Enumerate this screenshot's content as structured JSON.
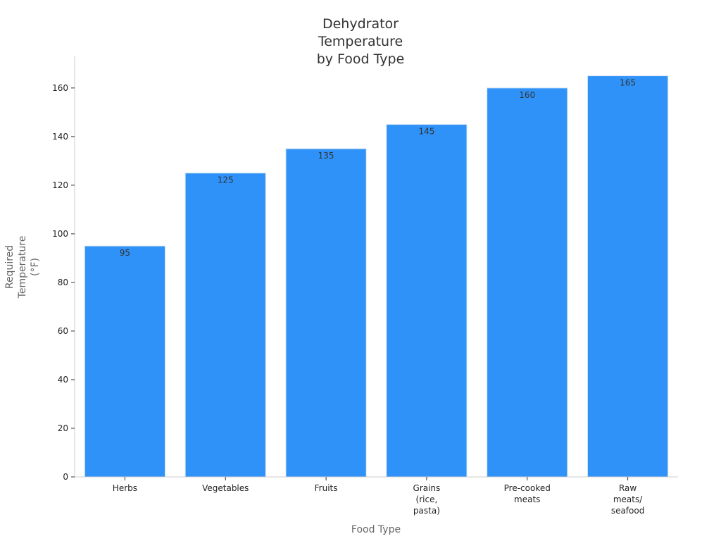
{
  "chart_data": {
    "type": "bar",
    "title": [
      "Dehydrator",
      "Temperature",
      "by Food Type"
    ],
    "xlabel": "Food Type",
    "ylabel": [
      "Required",
      "Temperature",
      "(°F)"
    ],
    "categories": [
      [
        "Herbs"
      ],
      [
        "Vegetables"
      ],
      [
        "Fruits"
      ],
      [
        "Grains",
        "(rice,",
        "pasta)"
      ],
      [
        "Pre-cooked",
        "meats"
      ],
      [
        "Raw",
        "meats/",
        "seafood"
      ]
    ],
    "values": [
      95,
      125,
      135,
      145,
      160,
      165
    ],
    "ylim": [
      0,
      173
    ],
    "yticks": [
      0,
      20,
      40,
      60,
      80,
      100,
      120,
      140,
      160
    ],
    "bar_color": "#2f92f8",
    "grid": false,
    "legend": "none"
  }
}
